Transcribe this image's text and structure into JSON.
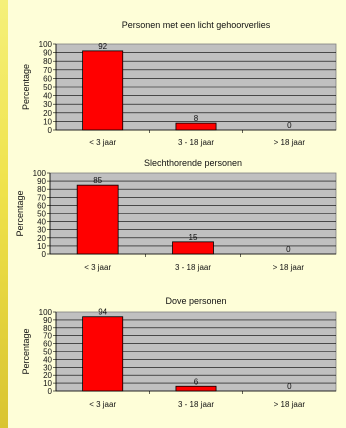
{
  "colors": {
    "bar_fill": "#ff0000",
    "bar_stroke": "#000000",
    "plot_bg": "#c0c0c0",
    "page_bg": "#fefed8",
    "stripe": "#efe24a"
  },
  "chart_data": [
    {
      "type": "bar",
      "title": "Personen met een licht gehoorverlies",
      "ylabel": "Percentage",
      "xlabel": "",
      "categories": [
        "< 3 jaar",
        "3 - 18 jaar",
        "> 18 jaar"
      ],
      "values": [
        92,
        8,
        0
      ],
      "ylim": [
        0,
        100
      ],
      "yticks": [
        0,
        10,
        20,
        30,
        40,
        50,
        60,
        70,
        80,
        90,
        100
      ],
      "grid": true
    },
    {
      "type": "bar",
      "title": "Slechthorende personen",
      "ylabel": "Percentage",
      "xlabel": "",
      "categories": [
        "< 3 jaar",
        "3 - 18 jaar",
        "> 18 jaar"
      ],
      "values": [
        85,
        15,
        0
      ],
      "ylim": [
        0,
        100
      ],
      "yticks": [
        0,
        10,
        20,
        30,
        40,
        50,
        60,
        70,
        80,
        90,
        100
      ],
      "grid": true
    },
    {
      "type": "bar",
      "title": "Dove personen",
      "ylabel": "Percentage",
      "xlabel": "",
      "categories": [
        "< 3 jaar",
        "3 - 18 jaar",
        "> 18 jaar"
      ],
      "values": [
        94,
        6,
        0
      ],
      "ylim": [
        0,
        100
      ],
      "yticks": [
        0,
        10,
        20,
        30,
        40,
        50,
        60,
        70,
        80,
        90,
        100
      ],
      "grid": true
    }
  ]
}
